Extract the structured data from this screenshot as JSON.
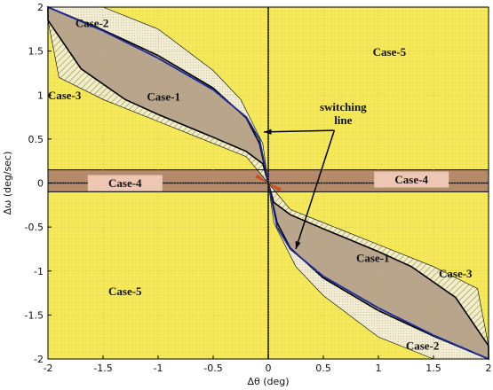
{
  "chart_data": {
    "type": "area",
    "xlabel": "Δθ (deg)",
    "ylabel": "Δω (deg/sec)",
    "xlim": [
      -2,
      2
    ],
    "ylim": [
      -2,
      2
    ],
    "x_ticks": [
      -2,
      -1.5,
      -1,
      -0.5,
      0,
      0.5,
      1,
      1.5,
      2
    ],
    "y_ticks": [
      -2,
      -1.5,
      -1,
      -0.5,
      0,
      0.5,
      1,
      1.5,
      2
    ],
    "x_tick_labels": [
      "-2",
      "-1.5",
      "-1",
      "-0.5",
      "0",
      "0.5",
      "1",
      "1.5",
      "2"
    ],
    "y_tick_labels": [
      "-2",
      "-1.5",
      "-1",
      "-0.5",
      "0",
      "0.5",
      "1",
      "1.5",
      "2"
    ],
    "colors": {
      "background": "#f5e95a",
      "case1": "#b9a48c",
      "case4": "#b48a6a",
      "case2": "#f1ecd2",
      "case3_hatch": "#9a9a55",
      "switching_line": "#1a2a9a",
      "boundary": "#000000"
    },
    "regions": {
      "case1_upper_boundary": [
        [
          -2,
          2
        ],
        [
          -1.5,
          1.74
        ],
        [
          -1,
          1.45
        ],
        [
          -0.5,
          1.08
        ],
        [
          -0.2,
          0.74
        ],
        [
          -0.08,
          0.45
        ],
        [
          0,
          0
        ]
      ],
      "case1_lower_boundary": [
        [
          -2,
          1.85
        ],
        [
          -1.7,
          1.3
        ],
        [
          -1.3,
          0.95
        ],
        [
          -1,
          0.78
        ],
        [
          -0.5,
          0.52
        ],
        [
          -0.2,
          0.36
        ],
        [
          -0.05,
          0.22
        ],
        [
          0,
          0
        ]
      ],
      "case2_outer_boundary": [
        [
          -1.95,
          2
        ],
        [
          -1.5,
          2
        ],
        [
          -1,
          1.75
        ],
        [
          -0.5,
          1.28
        ],
        [
          -0.25,
          0.95
        ],
        [
          -0.05,
          0.45
        ],
        [
          0,
          0
        ]
      ],
      "case3_outer_boundary": [
        [
          -2,
          1.85
        ],
        [
          -1.9,
          1.2
        ],
        [
          -1.5,
          0.95
        ],
        [
          -1,
          0.7
        ],
        [
          -0.5,
          0.45
        ],
        [
          -0.2,
          0.3
        ],
        [
          0,
          0
        ]
      ],
      "case4_band_y": [
        -0.1,
        0.15
      ],
      "switching_line": [
        [
          -2,
          2
        ],
        [
          -1.5,
          1.73
        ],
        [
          -1,
          1.42
        ],
        [
          -0.5,
          1.06
        ],
        [
          -0.2,
          0.75
        ],
        [
          -0.08,
          0.5
        ],
        [
          0,
          0
        ],
        [
          0.08,
          -0.5
        ],
        [
          0.2,
          -0.75
        ],
        [
          0.5,
          -1.06
        ],
        [
          1,
          -1.42
        ],
        [
          1.5,
          -1.73
        ],
        [
          2,
          -2
        ]
      ]
    },
    "labels": [
      {
        "text": "Case-2",
        "x": -1.6,
        "y": 1.82
      },
      {
        "text": "Case-1",
        "x": -0.95,
        "y": 0.98
      },
      {
        "text": "Case-3",
        "x": -1.85,
        "y": 1.0
      },
      {
        "text": "Case-5",
        "x": 1.1,
        "y": 1.49
      },
      {
        "text": "Case-4",
        "x": -1.3,
        "y": 0.0
      },
      {
        "text": "Case-4",
        "x": 1.3,
        "y": 0.04
      },
      {
        "text": "Case-1",
        "x": 0.95,
        "y": -0.85
      },
      {
        "text": "Case-3",
        "x": 1.7,
        "y": -1.03
      },
      {
        "text": "Case-5",
        "x": -1.3,
        "y": -1.23
      },
      {
        "text": "Case-2",
        "x": 1.4,
        "y": -1.85
      }
    ],
    "annotation": {
      "text_line1": "switching",
      "text_line2": "line",
      "x": 0.68,
      "y": 0.8,
      "arrow1_to": [
        -0.04,
        0.58
      ],
      "arrow2_to": [
        0.25,
        -0.75
      ]
    }
  }
}
